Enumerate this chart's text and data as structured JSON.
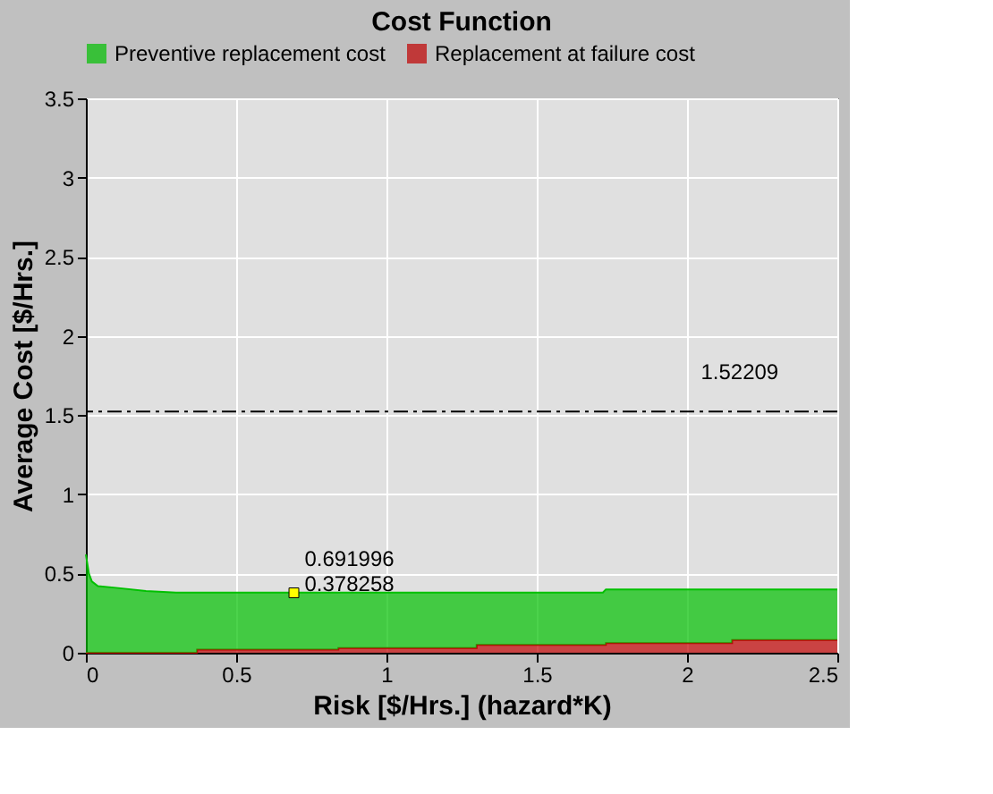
{
  "chart_data": {
    "type": "area",
    "title": "Cost Function",
    "xlabel": "Risk [$/Hrs.] (hazard*K)",
    "ylabel": "Average Cost [$/Hrs.]",
    "stacked": true,
    "x": [
      0,
      0.01,
      0.02,
      0.04,
      0.1,
      0.2,
      0.3,
      0.37,
      0.37,
      0.84,
      0.84,
      1.3,
      1.3,
      1.72,
      1.73,
      1.73,
      2.15,
      2.15,
      2.5
    ],
    "series": [
      {
        "name": "Replacement at failure cost",
        "color": "#c00000",
        "values": [
          0,
          0,
          0,
          0,
          0,
          0,
          0,
          0,
          0.02,
          0.02,
          0.03,
          0.03,
          0.05,
          0.05,
          0.05,
          0.06,
          0.06,
          0.08,
          0.08
        ]
      },
      {
        "name": "Preventive replacement cost",
        "color": "#00c000",
        "values": [
          0.62,
          0.5,
          0.45,
          0.42,
          0.41,
          0.39,
          0.38,
          0.38,
          0.36,
          0.36,
          0.35,
          0.35,
          0.33,
          0.33,
          0.35,
          0.34,
          0.34,
          0.32,
          0.32
        ]
      }
    ],
    "xlim": [
      0,
      2.5
    ],
    "xticks": [
      0,
      0.5,
      1,
      1.5,
      2,
      2.5
    ],
    "ylim": [
      0,
      3.5
    ],
    "yticks": [
      0,
      0.5,
      1,
      1.5,
      2,
      2.5,
      3,
      3.5
    ],
    "ref_lines": [
      {
        "axis": "y",
        "value": 1.52209,
        "label": "1.52209",
        "color": "#000000",
        "line_style": "dashdot"
      }
    ],
    "annotations": [
      {
        "text": "0.691996\n0.378258",
        "x": 0.691996,
        "y": 0.378258
      }
    ],
    "grid": true,
    "legend": "top"
  }
}
